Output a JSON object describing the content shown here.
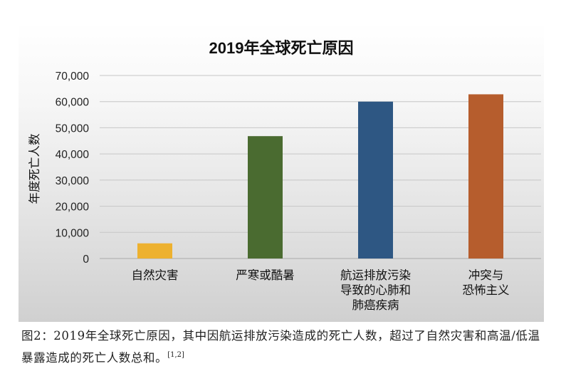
{
  "chart_data": {
    "type": "bar",
    "title": "2019年全球死亡原因",
    "ylabel": "年度死亡人数",
    "xlabel": "",
    "ylim": [
      0,
      70000
    ],
    "yticks": [
      "0",
      "10,000",
      "20,000",
      "30,000",
      "40,000",
      "50,000",
      "60,000",
      "70,000"
    ],
    "grid": true,
    "categories": [
      [
        "自然灾害"
      ],
      [
        "严寒或酷暑"
      ],
      [
        "航运排放污染",
        "导致的心肺和",
        "肺癌疾病"
      ],
      [
        "冲突与",
        "恐怖主义"
      ]
    ],
    "values": [
      5800,
      46800,
      60000,
      62800
    ],
    "colors": [
      "#EDB12F",
      "#4A6B30",
      "#2E5783",
      "#B65D2D"
    ]
  },
  "caption": {
    "text": "图2：2019年全球死亡原因，其中因航运排放污染造成的死亡人数，超过了自然灾害和高温/低温暴露造成的死亡人数总和。",
    "ref": "[1,2]"
  }
}
